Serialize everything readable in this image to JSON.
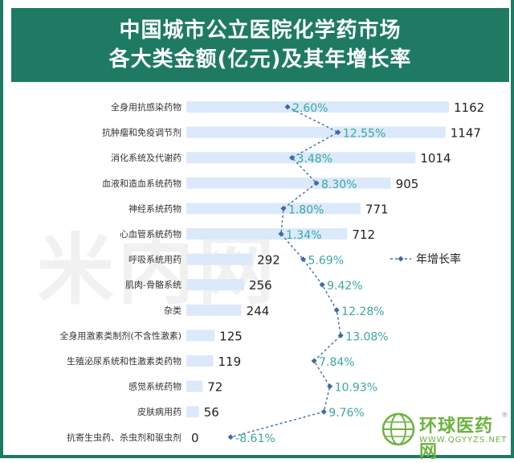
{
  "header": {
    "title_line1": "中国城市公立医院化学药市场",
    "title_line2": "各大类金额(亿元)及其年增长率"
  },
  "watermark": "米内网",
  "logo": {
    "name": "环球医药网",
    "url": "WWW.QGYYZS.NET",
    "mark": "®"
  },
  "colors": {
    "header": "#1e7a63",
    "bar": "#dbe9fb",
    "growth_text": "#3aa8a0",
    "growth_line": "#3a6ca8"
  },
  "chart_data": {
    "type": "bar",
    "orientation": "horizontal",
    "categories": [
      "全身用抗感染药物",
      "抗肿瘤和免疫调节剂",
      "消化系统及代谢药",
      "血液和造血系统药物",
      "神经系统药物",
      "心血管系统药物",
      "呼吸系统用药",
      "肌肉-骨骼系统",
      "杂类",
      "全身用激素类制剂(不含性激素)",
      "生殖泌尿系统和性激素类药物",
      "感觉系统药物",
      "皮肤病用药",
      "抗寄生虫药、杀虫剂和驱虫剂"
    ],
    "series": [
      {
        "values": [
          1162,
          1147,
          1014,
          905,
          771,
          712,
          292,
          256,
          244,
          125,
          119,
          72,
          56,
          0
        ]
      },
      {
        "name": "年增长率",
        "values": [
          2.6,
          12.55,
          3.48,
          8.3,
          1.8,
          1.34,
          5.69,
          9.42,
          12.28,
          13.08,
          7.84,
          10.93,
          9.76,
          -8.61
        ],
        "labels": [
          "2.60%",
          "12.55%",
          "3.48%",
          "8.30%",
          "1.80%",
          "1.34%",
          "5.69%",
          "9.42%",
          "12.28%",
          "13.08%",
          "7.84%",
          "10.93%",
          "9.76%",
          "-8.61%"
        ],
        "style": "dashed-line-with-diamond-markers"
      }
    ],
    "value_labels": [
      "1162",
      "1147",
      "1014",
      "905",
      "771",
      "712",
      "292",
      "256",
      "244",
      "125",
      "119",
      "72",
      "56",
      "0"
    ],
    "legend": {
      "entries": [
        "年增长率"
      ],
      "placement": "right"
    },
    "grid": false
  }
}
